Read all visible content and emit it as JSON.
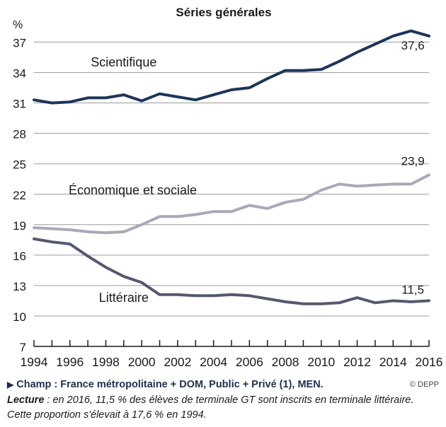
{
  "chart_data": {
    "type": "line",
    "title": "Séries générales",
    "ylabel": "%",
    "ylim": [
      7,
      38.5
    ],
    "yticks": [
      7,
      10,
      13,
      16,
      19,
      22,
      25,
      28,
      31,
      34,
      37
    ],
    "xlim": [
      1994,
      2016
    ],
    "xticks": [
      1994,
      1996,
      1998,
      2000,
      2002,
      2004,
      2006,
      2008,
      2010,
      2012,
      2014,
      2016
    ],
    "grid": "horizontal",
    "x": [
      1994,
      1995,
      1996,
      1997,
      1998,
      1999,
      2000,
      2001,
      2002,
      2003,
      2004,
      2005,
      2006,
      2007,
      2008,
      2009,
      2010,
      2011,
      2012,
      2013,
      2014,
      2015,
      2016
    ],
    "series": [
      {
        "name": "Scientifique",
        "color": "#1c3559",
        "values": [
          31.3,
          31.0,
          31.1,
          31.5,
          31.5,
          31.8,
          31.2,
          31.9,
          31.6,
          31.3,
          31.8,
          32.3,
          32.5,
          33.4,
          34.2,
          34.2,
          34.3,
          35.1,
          36.0,
          36.8,
          37.6,
          38.1,
          37.6
        ]
      },
      {
        "name": "Économique et sociale",
        "color": "#a8a9b9",
        "values": [
          18.7,
          18.6,
          18.5,
          18.3,
          18.2,
          18.3,
          19.0,
          19.8,
          19.8,
          20.0,
          20.3,
          20.3,
          20.9,
          20.6,
          21.2,
          21.5,
          22.4,
          23.0,
          22.8,
          22.9,
          23.0,
          23.0,
          23.9
        ]
      },
      {
        "name": "Littéraire",
        "color": "#55596f",
        "values": [
          17.6,
          17.3,
          17.1,
          15.9,
          14.8,
          13.9,
          13.3,
          12.1,
          12.1,
          12.0,
          12.0,
          12.1,
          12.0,
          11.7,
          11.4,
          11.2,
          11.2,
          11.3,
          11.8,
          11.3,
          11.5,
          11.4,
          11.5
        ]
      }
    ],
    "end_labels": [
      "37,6",
      "23,9",
      "11,5"
    ]
  },
  "captions": {
    "source_arrow": "▶",
    "source": "Champ : France métropolitaine + DOM, Public + Privé (1), MEN.",
    "copyright": "© DEPP",
    "reading_label": "Lecture",
    "reading_text": " : en 2016, 11,5 % des élèves de terminale GT sont inscrits en terminale littéraire.",
    "reading_text2": "Cette proportion s'élevait à 17,6 % en 1994."
  }
}
